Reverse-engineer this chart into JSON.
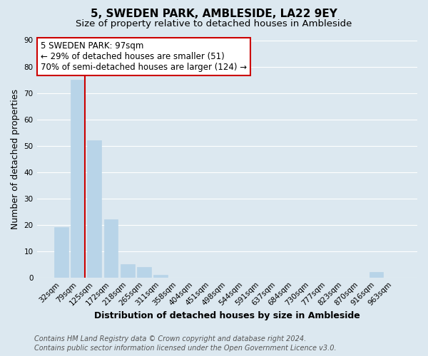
{
  "title_line1": "5, SWEDEN PARK, AMBLESIDE, LA22 9EY",
  "title_line2": "Size of property relative to detached houses in Ambleside",
  "xlabel": "Distribution of detached houses by size in Ambleside",
  "ylabel": "Number of detached properties",
  "bar_labels": [
    "32sqm",
    "79sqm",
    "125sqm",
    "172sqm",
    "218sqm",
    "265sqm",
    "311sqm",
    "358sqm",
    "404sqm",
    "451sqm",
    "498sqm",
    "544sqm",
    "591sqm",
    "637sqm",
    "684sqm",
    "730sqm",
    "777sqm",
    "823sqm",
    "870sqm",
    "916sqm",
    "963sqm"
  ],
  "bar_values": [
    19,
    75,
    52,
    22,
    5,
    4,
    1,
    0,
    0,
    0,
    0,
    0,
    0,
    0,
    0,
    0,
    0,
    0,
    0,
    2,
    0
  ],
  "bar_color": "#b8d4e8",
  "bar_edge_color": "#b8d4e8",
  "vline_x_right_of_bar": 1,
  "vline_color": "#cc0000",
  "annotation_line1": "5 SWEDEN PARK: 97sqm",
  "annotation_line2": "← 29% of detached houses are smaller (51)",
  "annotation_line3": "70% of semi-detached houses are larger (124) →",
  "box_edge_color": "#cc0000",
  "box_face_color": "#ffffff",
  "ylim": [
    0,
    90
  ],
  "yticks": [
    0,
    10,
    20,
    30,
    40,
    50,
    60,
    70,
    80,
    90
  ],
  "grid_color": "#ffffff",
  "bg_color": "#dce8f0",
  "plot_bg_color": "#dce8f0",
  "footer_line1": "Contains HM Land Registry data © Crown copyright and database right 2024.",
  "footer_line2": "Contains public sector information licensed under the Open Government Licence v3.0.",
  "title_fontsize": 11,
  "subtitle_fontsize": 9.5,
  "axis_label_fontsize": 9,
  "tick_fontsize": 7.5,
  "annotation_fontsize": 8.5,
  "footer_fontsize": 7
}
